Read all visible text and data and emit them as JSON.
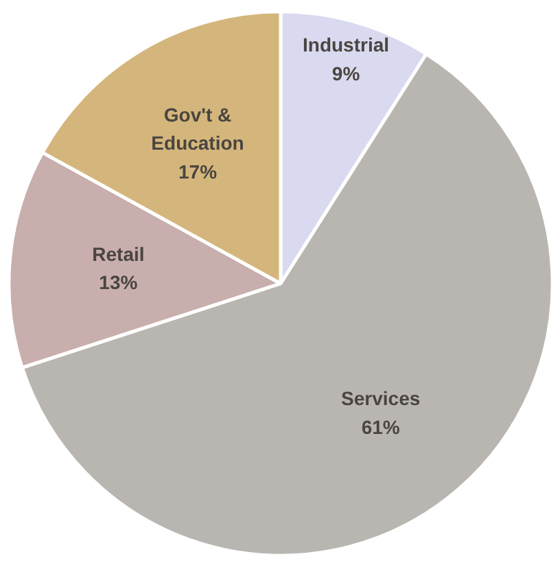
{
  "chart_data": {
    "type": "pie",
    "categories": [
      "Industrial",
      "Services",
      "Retail",
      "Gov't & Education"
    ],
    "values": [
      9,
      61,
      13,
      17
    ],
    "value_labels": [
      "9%",
      "61%",
      "13%",
      "17%"
    ],
    "colors": [
      "#d9d9ef",
      "#b9b6b1",
      "#c8aeac",
      "#d4b67c"
    ],
    "legend": false
  }
}
